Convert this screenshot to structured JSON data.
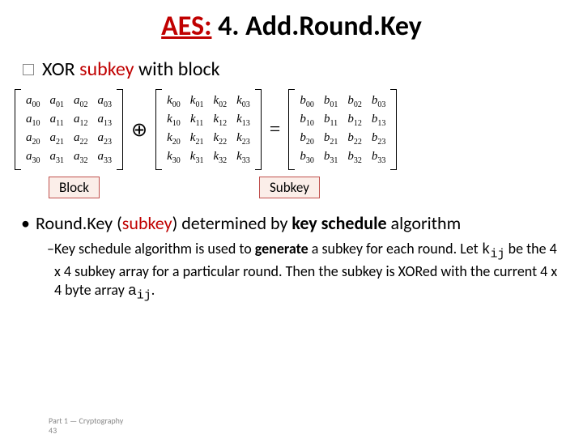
{
  "title": {
    "prefix": "AES:",
    "rest": " 4. Add.Round.Key"
  },
  "subhead": {
    "plain": "XOR ",
    "red": "subkey",
    "rest": " with block"
  },
  "matrices": {
    "A": {
      "var": "a",
      "rows": 4,
      "cols": 4
    },
    "K": {
      "var": "k",
      "rows": 4,
      "cols": 4
    },
    "B": {
      "var": "b",
      "rows": 4,
      "cols": 4
    }
  },
  "ops": {
    "xor": "⊕",
    "eq": "="
  },
  "labels": {
    "block": "Block",
    "subkey": "Subkey"
  },
  "point": {
    "lead": "Round.Key (",
    "red": "subkey",
    "mid": ") determined by ",
    "bold": "key schedule",
    "tail": " algorithm"
  },
  "sub": {
    "a": "Key schedule algorithm is used to ",
    "b": "generate",
    "c": " a subkey for each round. Let ",
    "k": "k",
    "ks": "ij",
    "d": " be the 4 x 4 subkey array for a particular round. Then the subkey is XORed with the current 4 x 4 byte array ",
    "av": "a",
    "as": "ij",
    "e": "."
  },
  "footer": {
    "line1": "Part 1 — Cryptography",
    "line2": "43"
  },
  "style": {
    "accent": "#c00000",
    "box_border": "#c0504d",
    "box_bg": "#fbeee9"
  }
}
